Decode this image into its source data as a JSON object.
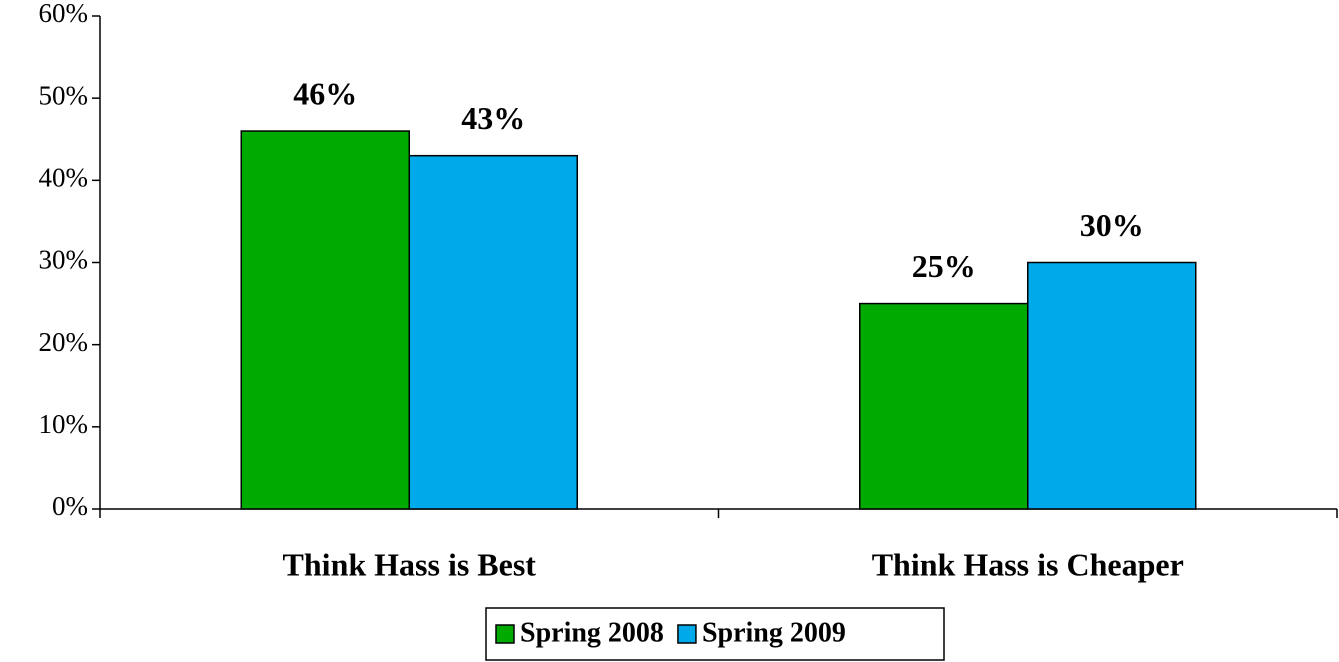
{
  "chart_data": {
    "type": "bar",
    "categories": [
      "Think Hass is Best",
      "Think Hass is Cheaper"
    ],
    "series": [
      {
        "name": "Spring 2008",
        "color": "#00aa00",
        "values": [
          46,
          25
        ],
        "value_labels": [
          "46%",
          "25%"
        ]
      },
      {
        "name": "Spring 2009",
        "color": "#00aaea",
        "values": [
          43,
          30
        ],
        "value_labels": [
          "43%",
          "30%"
        ]
      }
    ],
    "ylim": [
      0,
      60
    ],
    "yticks": [
      {
        "value": 0,
        "label": "0%"
      },
      {
        "value": 10,
        "label": "10%"
      },
      {
        "value": 20,
        "label": "20%"
      },
      {
        "value": 30,
        "label": "30%"
      },
      {
        "value": 40,
        "label": "40%"
      },
      {
        "value": 50,
        "label": "50%"
      },
      {
        "value": 60,
        "label": "60%"
      }
    ],
    "legend": "bottom"
  }
}
